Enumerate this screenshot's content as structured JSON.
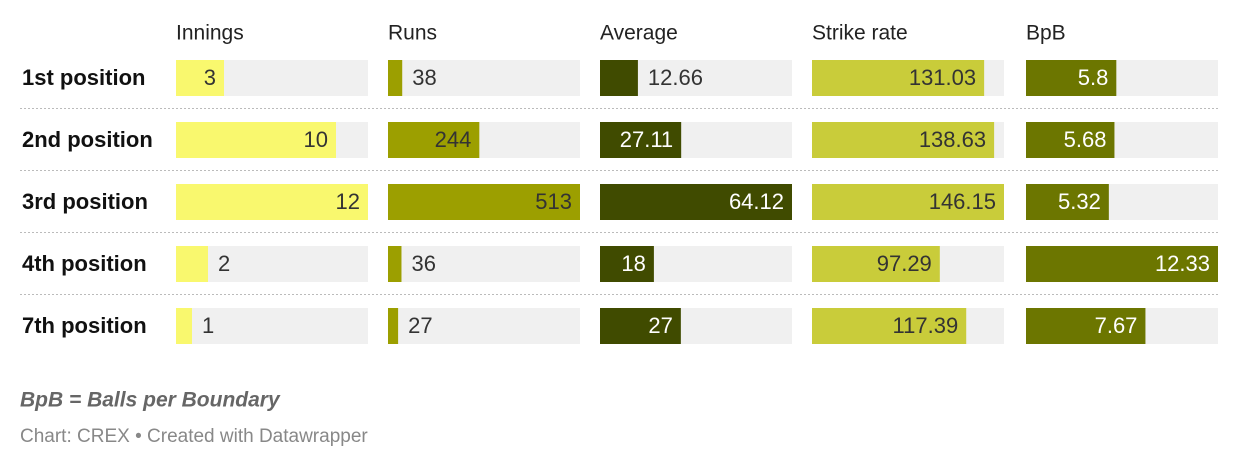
{
  "chart_data": {
    "type": "bar-table",
    "categories": [
      "1st position",
      "2nd position",
      "3rd position",
      "4th position",
      "7th position"
    ],
    "series": [
      {
        "name": "Innings",
        "color": "#f9f86e",
        "values": [
          3,
          10,
          12,
          2,
          1
        ]
      },
      {
        "name": "Runs",
        "color": "#9c9f00",
        "values": [
          38,
          244,
          513,
          36,
          27
        ]
      },
      {
        "name": "Average",
        "color": "#404b00",
        "values": [
          12.66,
          27.11,
          64.12,
          18,
          27
        ]
      },
      {
        "name": "Strike rate",
        "color": "#c9cc3a",
        "values": [
          131.03,
          138.63,
          146.15,
          97.29,
          117.39
        ]
      },
      {
        "name": "BpB",
        "color": "#6c7600",
        "values": [
          5.8,
          5.68,
          5.32,
          12.33,
          7.67
        ]
      }
    ],
    "note": "BpB = Balls per Boundary",
    "source": "Chart: CREX • Created with Datawrapper"
  }
}
